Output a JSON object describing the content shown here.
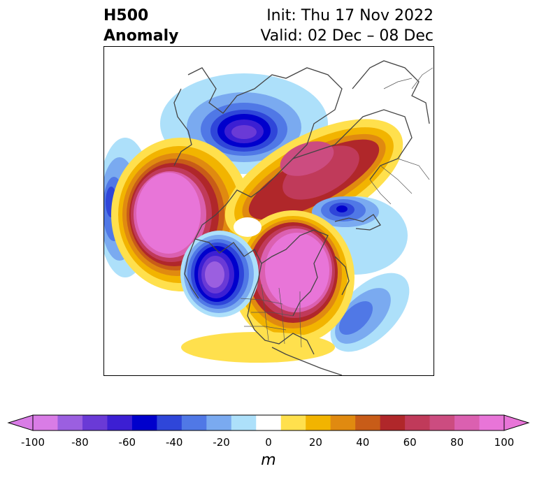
{
  "header": {
    "title_line1": "H500",
    "title_line2": "Anomaly",
    "init_text": "Init: Thu 17 Nov 2022",
    "valid_text": "Valid: 02 Dec – 08 Dec"
  },
  "colorbar": {
    "ticks": [
      "-100",
      "-80",
      "-60",
      "-40",
      "-20",
      "0",
      "20",
      "40",
      "60",
      "80",
      "100"
    ],
    "unit": "m",
    "extend": "both",
    "colors": [
      "#d97ce6",
      "#9b5fe0",
      "#6a3ad6",
      "#3c1fd3",
      "#0000cc",
      "#2f46d9",
      "#5078e6",
      "#7aaaf0",
      "#ade0fa",
      "#ffffff",
      "#ffe04d",
      "#f2b400",
      "#e08a10",
      "#c85c18",
      "#b0272a",
      "#c03a5a",
      "#cc4c80",
      "#db60b0",
      "#e875d8"
    ]
  },
  "map": {
    "projection": "north-polar-stereographic",
    "anomaly_centers": [
      {
        "sign": "negative",
        "region": "eastern-siberia",
        "level": -80
      },
      {
        "sign": "positive",
        "region": "north-pacific-bering",
        "level": 100
      },
      {
        "sign": "negative",
        "region": "gulf-of-alaska-west-coast",
        "level": -90
      },
      {
        "sign": "positive",
        "region": "central-canada-hudson-bay",
        "level": 90
      },
      {
        "sign": "positive",
        "region": "arctic-ocean-greenland",
        "level": 70
      },
      {
        "sign": "negative",
        "region": "scandinavia-europe",
        "level": -60
      },
      {
        "sign": "negative",
        "region": "north-atlantic",
        "level": -50
      },
      {
        "sign": "negative",
        "region": "western-pacific",
        "level": -60
      }
    ]
  }
}
